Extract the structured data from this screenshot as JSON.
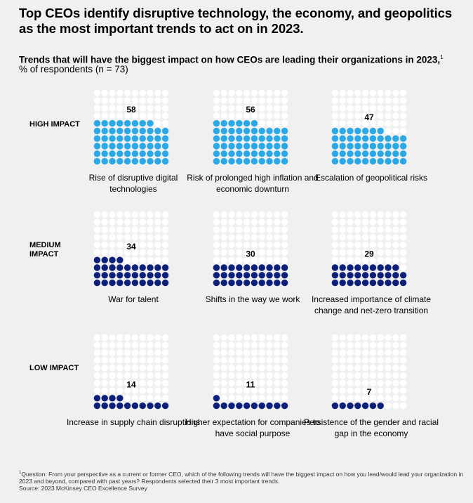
{
  "title": "Top CEOs identify disruptive technology, the economy, and geopolitics as the most important trends to act on in 2023.",
  "subtitle": "Trends that will have the biggest impact on how CEOs are leading their organizations in 2023,",
  "subtitle_marker": "1",
  "unit": "% of respondents (n = 73)",
  "row_labels": {
    "high": "HIGH IMPACT",
    "medium": "MEDIUM IMPACT",
    "low": "LOW IMPACT"
  },
  "colors": {
    "high": "#2aa8e8",
    "medium_low": "#0c1f7a",
    "empty": "#ffffff"
  },
  "chart_data": {
    "type": "waffle",
    "total_cells": 100,
    "rows": [
      "HIGH IMPACT",
      "MEDIUM IMPACT",
      "LOW IMPACT"
    ],
    "panels": [
      {
        "label": "Rise of disruptive digital technologies",
        "value": 58,
        "row": "HIGH IMPACT"
      },
      {
        "label": "Risk of prolonged high inflation and economic downturn",
        "value": 56,
        "row": "HIGH IMPACT"
      },
      {
        "label": "Escalation of geopolitical risks",
        "value": 47,
        "row": "HIGH IMPACT"
      },
      {
        "label": "War for talent",
        "value": 34,
        "row": "MEDIUM IMPACT"
      },
      {
        "label": "Shifts in the way we work",
        "value": 30,
        "row": "MEDIUM IMPACT"
      },
      {
        "label": "Increased importance of climate change and net-zero transition",
        "value": 29,
        "row": "MEDIUM IMPACT"
      },
      {
        "label": "Increase in supply chain disruptions",
        "value": 14,
        "row": "LOW IMPACT"
      },
      {
        "label": "Higher expectation for companies to have social purpose",
        "value": 11,
        "row": "LOW IMPACT"
      },
      {
        "label": "Persistence of the gender and racial gap in the economy",
        "value": 7,
        "row": "LOW IMPACT"
      }
    ]
  },
  "footnote": {
    "marker": "1",
    "question": "Question: From your perspective as a current or former CEO, which of the following trends will have the biggest impact on how you lead/would lead your organization in 2023 and beyond, compared with past years? Respondents selected their 3 most important trends.",
    "source": "Source: 2023 McKinsey CEO Excellence Survey"
  }
}
